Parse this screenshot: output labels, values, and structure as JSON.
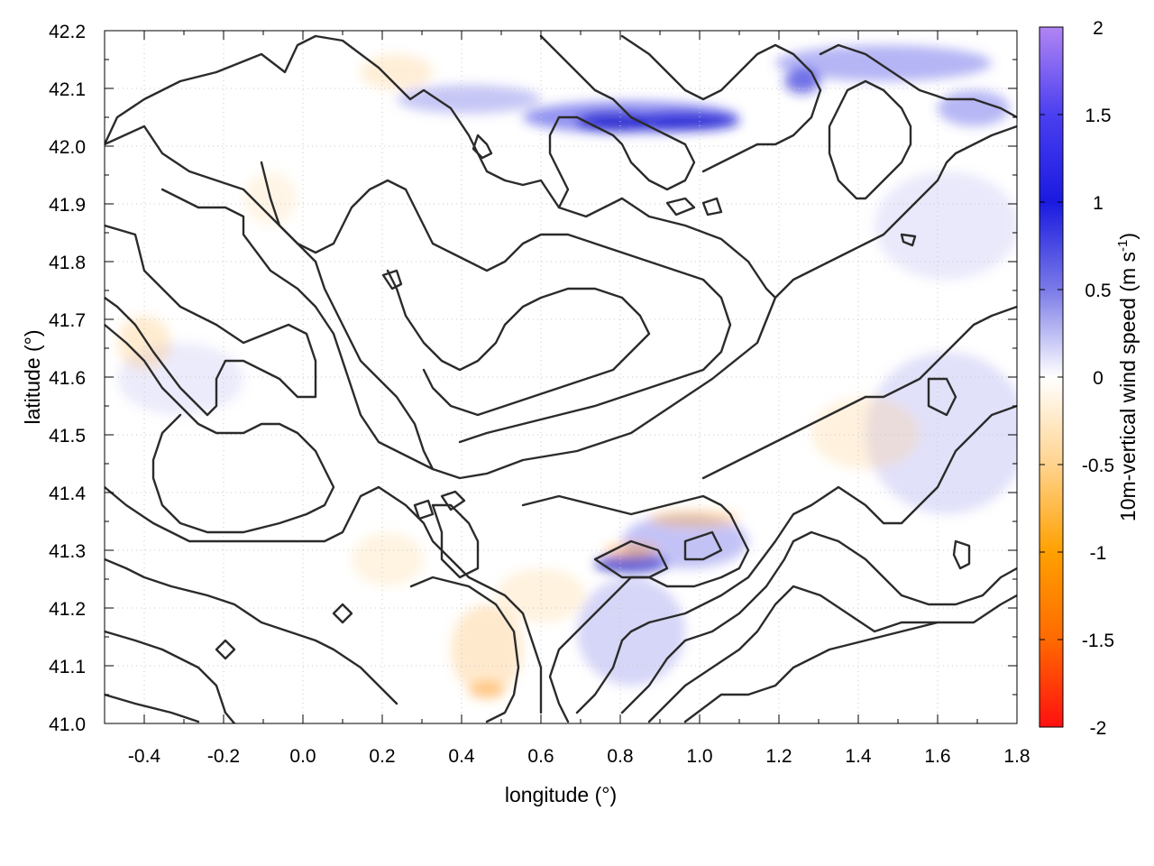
{
  "chart_data": {
    "type": "heatmap",
    "title": "",
    "xlabel": "longitude (°)",
    "ylabel": "latitude (°)",
    "xlim": [
      -0.5,
      1.8
    ],
    "ylim": [
      41.0,
      42.2
    ],
    "x_ticks": [
      "-0.4",
      "-0.2",
      "0.0",
      "0.2",
      "0.4",
      "0.6",
      "0.8",
      "1.0",
      "1.2",
      "1.4",
      "1.6",
      "1.8"
    ],
    "y_ticks": [
      "41.0",
      "41.1",
      "41.2",
      "41.3",
      "41.4",
      "41.5",
      "41.6",
      "41.7",
      "41.8",
      "41.9",
      "42.0",
      "42.1",
      "42.2"
    ],
    "grid": true,
    "colorbar": {
      "label": "10m-vertical wind speed (m s",
      "label_superscript": "-1",
      "label_close": ")",
      "range": [
        -2,
        2
      ],
      "ticks": [
        "2",
        "1.5",
        "1",
        "0.5",
        "0",
        "-0.5",
        "-1",
        "-1.5",
        "-2"
      ],
      "colors": {
        "max": "#b185f3",
        "high": "#1f1fd6",
        "mid_high": "#8a8ae8",
        "zero": "#ffffff",
        "mid_low": "#ffd08a",
        "low": "#ff9c00",
        "min": "#ff1a1a"
      }
    },
    "overlay": "terrain-contours"
  }
}
